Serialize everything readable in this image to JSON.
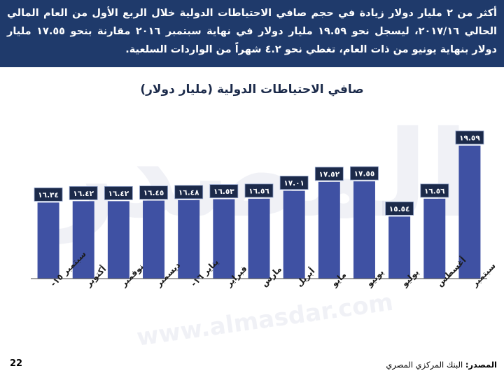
{
  "header": {
    "text": "أكثر من ٢ مليار دولار زيادة في حجم صافي الاحتياطات الدولية خلال الربع الأول من العام المالي الحالي ٢٠١٧/١٦، ليسجل نحو ١٩.٥٩ مليار دولار في نهاية سبتمبر ٢٠١٦ مقارنة بنحو ١٧.٥٥ مليار دولار بنهاية يونيو من ذات العام، تغطي نحو ٤.٢ شهراً من الواردات السلعية."
  },
  "watermark": {
    "text": "المصدر",
    "url": "www.almasdar.com"
  },
  "chart_data": {
    "type": "bar",
    "title": "صافي الاحتياطات الدولية (مليار دولار)",
    "categories": [
      "سبتمبر ١٥-",
      "أكتوبر",
      "نوفمبر",
      "ديسمبر",
      "يناير ١٦-",
      "فبراير",
      "مارس",
      "أبريل",
      "مايو",
      "يونيو",
      "يوليو",
      "أغسطس",
      "سبتمبر"
    ],
    "values": [
      16.34,
      16.42,
      16.42,
      16.45,
      16.48,
      16.53,
      16.56,
      17.01,
      17.52,
      17.55,
      15.54,
      16.56,
      19.59
    ],
    "value_labels": [
      "١٦.٣٤",
      "١٦.٤٢",
      "١٦.٤٢",
      "١٦.٤٥",
      "١٦.٤٨",
      "١٦.٥٣",
      "١٦.٥٦",
      "١٧.٠١",
      "١٧.٥٢",
      "١٧.٥٥",
      "١٥.٥٤",
      "١٦.٥٦",
      "١٩.٥٩"
    ],
    "ylim": [
      0,
      19.59
    ],
    "grid": false,
    "colors": {
      "bar": "#3f51a3",
      "label_bg": "#1c2a4a",
      "label_text": "#ffffff",
      "axis": "#444444"
    }
  },
  "footer": {
    "source_label": "المصدر:",
    "source_text": " البنك المركزي المصري",
    "page_number": "22"
  }
}
